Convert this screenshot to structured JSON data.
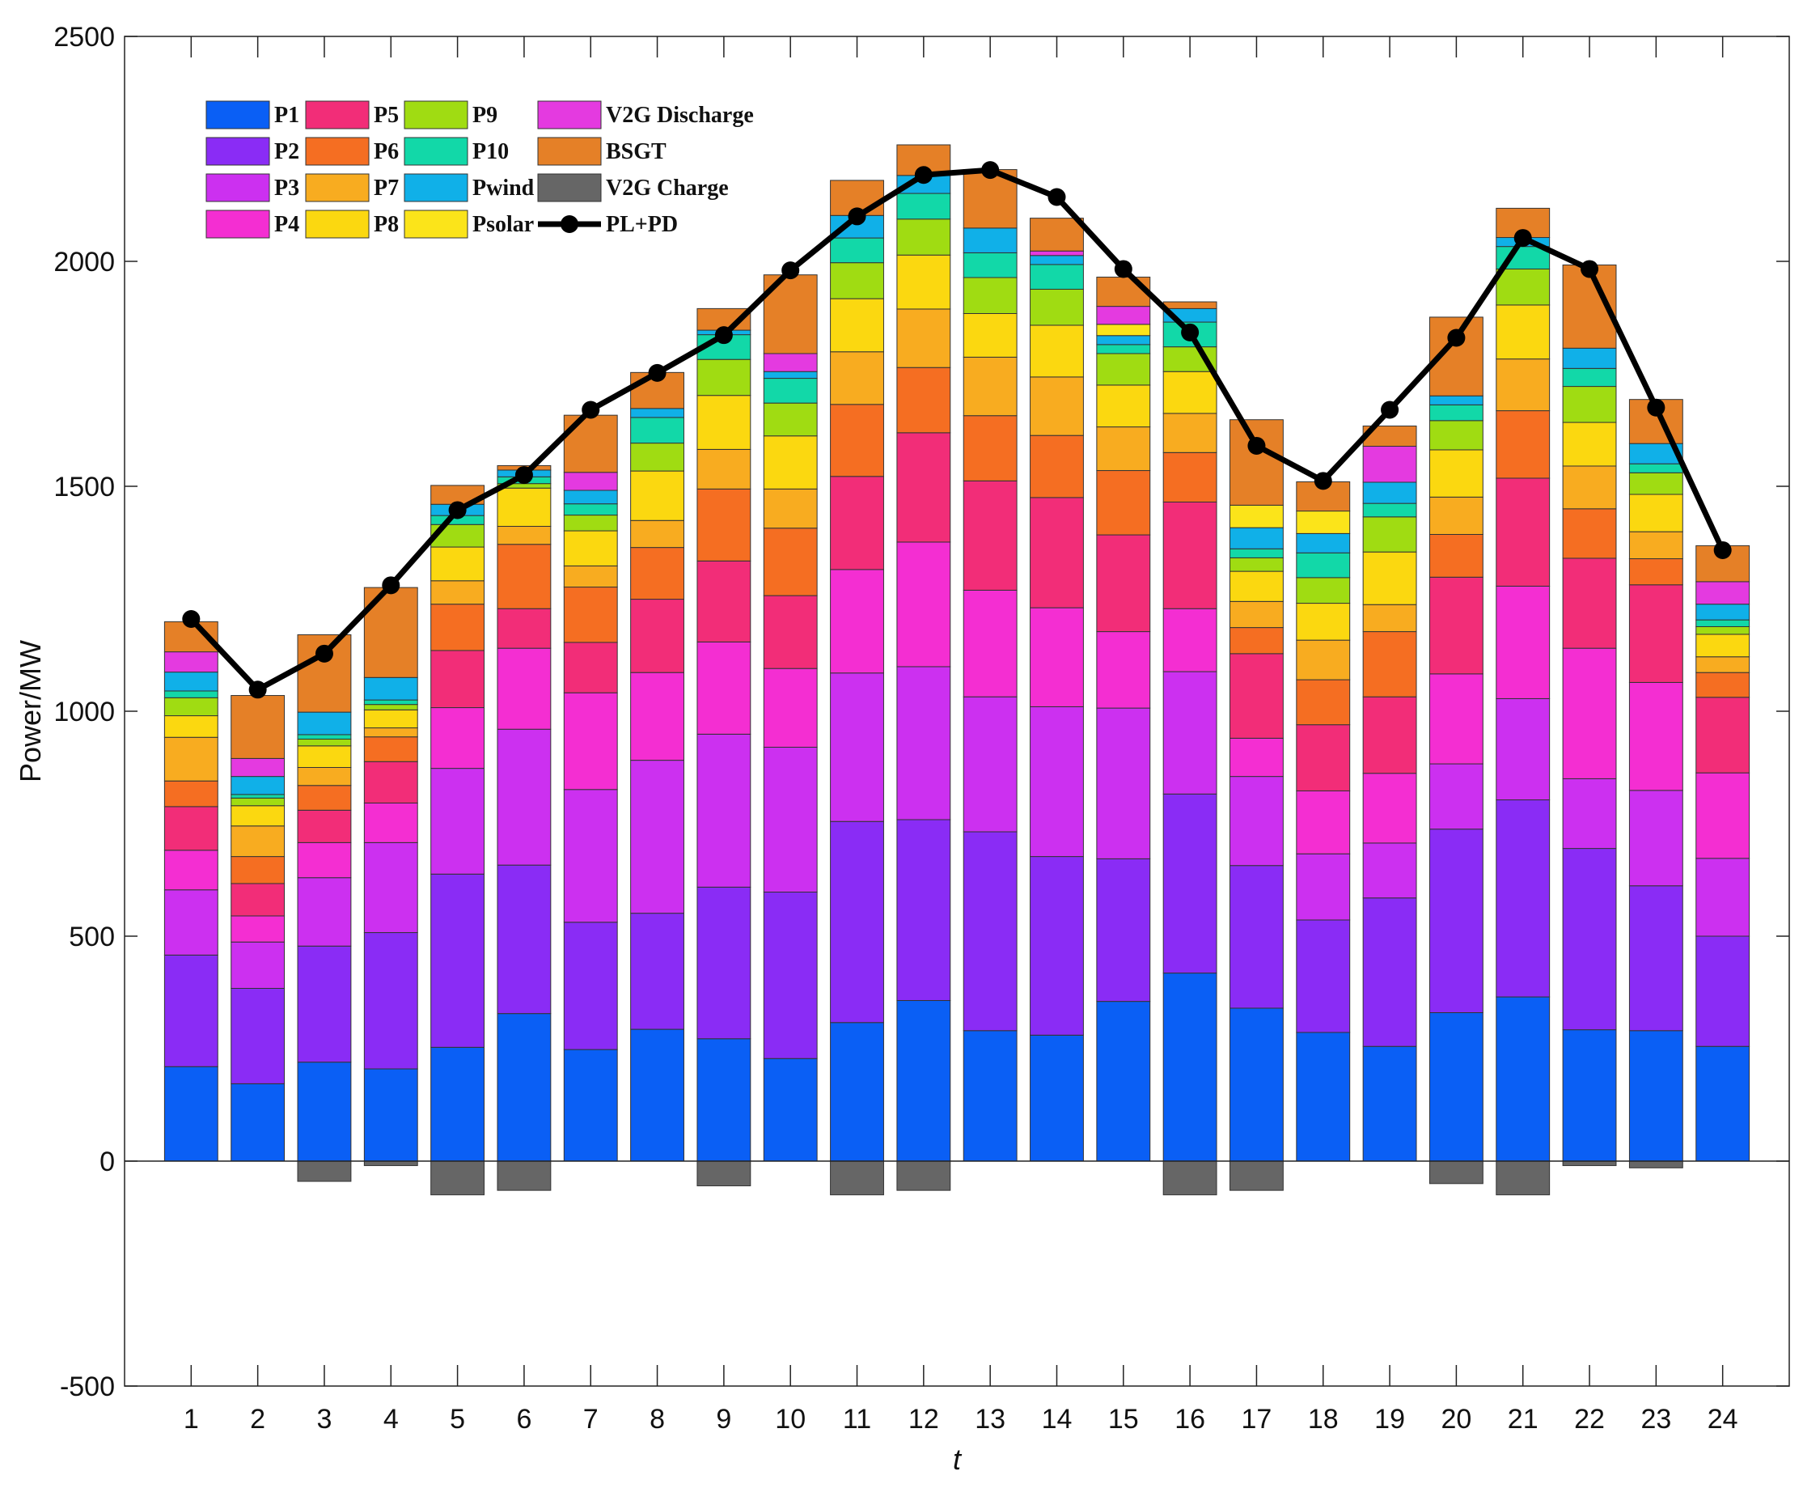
{
  "chart_data": {
    "type": "bar",
    "stacked": true,
    "title": "",
    "xlabel": "t",
    "ylabel": "Power/MW",
    "ylim": [
      -500,
      2500
    ],
    "yticks": [
      -500,
      0,
      500,
      1000,
      1500,
      2000,
      2500
    ],
    "categories": [
      "1",
      "2",
      "3",
      "4",
      "5",
      "6",
      "7",
      "8",
      "9",
      "10",
      "11",
      "12",
      "13",
      "14",
      "15",
      "16",
      "17",
      "18",
      "19",
      "20",
      "21",
      "22",
      "23",
      "24"
    ],
    "grid": false,
    "legend_position": "top-left",
    "series": [
      {
        "name": "P1",
        "color": "#0a5ff5",
        "values": [
          210,
          172,
          220,
          205,
          253,
          328,
          248,
          293,
          272,
          228,
          308,
          357,
          290,
          280,
          355,
          418,
          340,
          286,
          255,
          330,
          365,
          292,
          290,
          255
        ]
      },
      {
        "name": "P2",
        "color": "#8a2cf5",
        "values": [
          248,
          212,
          258,
          303,
          385,
          330,
          283,
          258,
          337,
          370,
          447,
          402,
          442,
          397,
          317,
          398,
          317,
          250,
          330,
          408,
          438,
          403,
          322,
          245
        ]
      },
      {
        "name": "P3",
        "color": "#cc30f0",
        "values": [
          145,
          103,
          152,
          200,
          235,
          302,
          295,
          340,
          340,
          322,
          330,
          340,
          300,
          333,
          335,
          272,
          198,
          147,
          122,
          145,
          225,
          155,
          212,
          173
        ]
      },
      {
        "name": "P4",
        "color": "#f42ed2",
        "values": [
          88,
          58,
          78,
          88,
          135,
          180,
          215,
          195,
          205,
          175,
          230,
          277,
          237,
          220,
          170,
          140,
          85,
          140,
          155,
          200,
          250,
          290,
          240,
          190
        ]
      },
      {
        "name": "P5",
        "color": "#f22d78",
        "values": [
          97,
          72,
          72,
          92,
          127,
          88,
          112,
          163,
          180,
          162,
          207,
          243,
          243,
          245,
          215,
          237,
          188,
          147,
          170,
          215,
          240,
          200,
          217,
          168
        ]
      },
      {
        "name": "P6",
        "color": "#f56e22",
        "values": [
          57,
          60,
          55,
          55,
          103,
          143,
          123,
          115,
          160,
          150,
          160,
          145,
          145,
          138,
          143,
          110,
          58,
          100,
          145,
          95,
          150,
          110,
          58,
          55
        ]
      },
      {
        "name": "P7",
        "color": "#f8ac20",
        "values": [
          97,
          68,
          40,
          20,
          52,
          40,
          47,
          60,
          88,
          87,
          117,
          130,
          130,
          130,
          97,
          87,
          58,
          88,
          60,
          83,
          115,
          95,
          60,
          35
        ]
      },
      {
        "name": "P8",
        "color": "#fbd810",
        "values": [
          48,
          45,
          48,
          40,
          75,
          85,
          78,
          110,
          120,
          118,
          118,
          120,
          97,
          115,
          93,
          93,
          67,
          82,
          117,
          105,
          120,
          97,
          83,
          50
        ]
      },
      {
        "name": "P9",
        "color": "#a0dc12",
        "values": [
          40,
          17,
          15,
          12,
          50,
          10,
          35,
          62,
          80,
          73,
          80,
          80,
          80,
          80,
          70,
          55,
          30,
          57,
          78,
          65,
          80,
          80,
          48,
          17
        ]
      },
      {
        "name": "P10",
        "color": "#12d8a8",
        "values": [
          15,
          8,
          10,
          10,
          20,
          15,
          25,
          57,
          55,
          55,
          55,
          57,
          55,
          55,
          20,
          55,
          20,
          55,
          30,
          35,
          50,
          40,
          20,
          15
        ]
      },
      {
        "name": "Pwind",
        "color": "#10b0e8",
        "values": [
          42,
          40,
          50,
          50,
          25,
          15,
          30,
          20,
          10,
          15,
          50,
          40,
          55,
          20,
          20,
          30,
          47,
          43,
          47,
          20,
          20,
          45,
          45,
          35
        ]
      },
      {
        "name": "Psolar",
        "color": "#fbe41a",
        "values": [
          0,
          0,
          0,
          0,
          0,
          0,
          0,
          0,
          0,
          0,
          0,
          0,
          0,
          0,
          25,
          0,
          50,
          50,
          0,
          0,
          0,
          0,
          0,
          0
        ]
      },
      {
        "name": "V2G Discharge",
        "color": "#e43ae0",
        "values": [
          45,
          40,
          0,
          0,
          0,
          0,
          40,
          0,
          0,
          40,
          0,
          0,
          0,
          10,
          40,
          0,
          0,
          0,
          80,
          0,
          0,
          0,
          0,
          50
        ]
      },
      {
        "name": "BSGT",
        "color": "#e58027",
        "values": [
          67,
          140,
          172,
          200,
          42,
          10,
          127,
          80,
          48,
          175,
          78,
          68,
          130,
          73,
          65,
          15,
          190,
          65,
          45,
          175,
          65,
          185,
          98,
          80
        ]
      },
      {
        "name": "V2G Charge",
        "color": "#666666",
        "values": [
          0,
          0,
          -45,
          -10,
          -75,
          -65,
          0,
          0,
          -55,
          0,
          -75,
          -65,
          0,
          0,
          0,
          -75,
          -65,
          0,
          0,
          -50,
          -75,
          -10,
          -15,
          0
        ]
      }
    ],
    "line_series": {
      "name": "PL+PD",
      "color": "#000000",
      "values": [
        1205,
        1048,
        1128,
        1280,
        1447,
        1525,
        1670,
        1752,
        1836,
        1980,
        2100,
        2192,
        2203,
        2143,
        1983,
        1842,
        1590,
        1512,
        1670,
        1830,
        2052,
        1983,
        1675,
        1358
      ]
    }
  }
}
